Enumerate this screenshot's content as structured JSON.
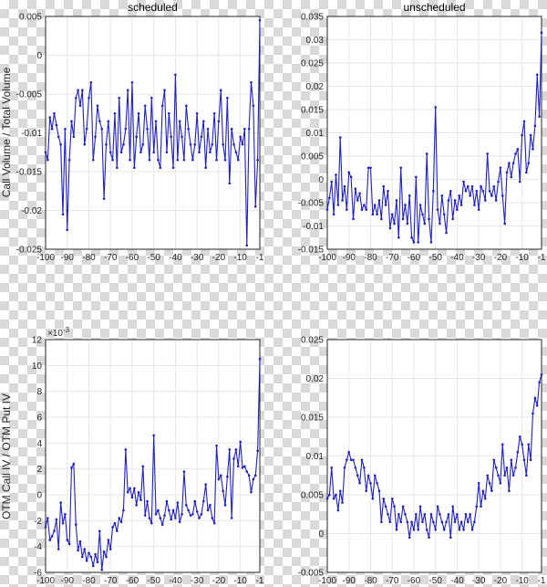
{
  "colors": {
    "series": "#1f1fc8",
    "axes": "#262626",
    "grid": "#e6e6e6"
  },
  "chart_data": [
    {
      "type": "line",
      "title": "scheduled",
      "ylabel": "",
      "xlim": [
        -100,
        -1
      ],
      "ylim": [
        -0.025,
        0.005
      ],
      "xticks": [
        -100,
        -90,
        -80,
        -70,
        -60,
        -50,
        -40,
        -30,
        -20,
        -10,
        -1
      ],
      "xtick_labels": [
        "-100",
        "-90",
        "-80",
        "-70",
        "-60",
        "-50",
        "-40",
        "-30",
        "-20",
        "-10",
        "-1"
      ],
      "yticks": [
        -0.025,
        -0.02,
        -0.015,
        -0.01,
        -0.005,
        0,
        0.005
      ],
      "ytick_labels": [
        "-0.025",
        "-0.02",
        "-0.015",
        "-0.01",
        "-0.005",
        "0",
        "0.005"
      ],
      "y_exponent": "",
      "grid": true,
      "x": [
        -100,
        -99,
        -98,
        -97,
        -96,
        -95,
        -94,
        -93,
        -92,
        -91,
        -90,
        -89,
        -88,
        -87,
        -86,
        -85,
        -84,
        -83,
        -82,
        -81,
        -80,
        -79,
        -78,
        -77,
        -76,
        -75,
        -74,
        -73,
        -72,
        -71,
        -70,
        -69,
        -68,
        -67,
        -66,
        -65,
        -64,
        -63,
        -62,
        -61,
        -60,
        -59,
        -58,
        -57,
        -56,
        -55,
        -54,
        -53,
        -52,
        -51,
        -50,
        -49,
        -48,
        -47,
        -46,
        -45,
        -44,
        -43,
        -42,
        -41,
        -40,
        -39,
        -38,
        -37,
        -36,
        -35,
        -34,
        -33,
        -32,
        -31,
        -30,
        -29,
        -28,
        -27,
        -26,
        -25,
        -24,
        -23,
        -22,
        -21,
        -20,
        -19,
        -18,
        -17,
        -16,
        -15,
        -14,
        -13,
        -12,
        -11,
        -10,
        -9,
        -8,
        -7,
        -6,
        -5,
        -4,
        -3,
        -2,
        -1
      ],
      "y": [
        -0.0125,
        -0.0135,
        -0.008,
        -0.0095,
        -0.0075,
        -0.009,
        -0.0105,
        -0.0115,
        -0.0205,
        -0.0095,
        -0.0225,
        -0.0135,
        -0.0085,
        -0.0105,
        -0.0055,
        -0.0045,
        -0.0065,
        -0.0045,
        -0.0115,
        -0.0095,
        -0.0055,
        -0.0035,
        -0.0135,
        -0.0105,
        -0.0065,
        -0.0085,
        -0.0095,
        -0.0185,
        -0.0115,
        -0.0085,
        -0.0125,
        -0.0135,
        -0.0075,
        -0.0145,
        -0.0055,
        -0.0125,
        -0.0115,
        -0.0095,
        -0.0045,
        -0.0135,
        -0.0035,
        -0.0145,
        -0.0105,
        -0.0075,
        -0.0125,
        -0.0115,
        -0.0065,
        -0.0095,
        -0.0135,
        -0.0055,
        -0.0125,
        -0.0085,
        -0.0135,
        -0.0145,
        -0.0065,
        -0.0045,
        -0.0125,
        -0.0075,
        -0.0105,
        -0.0145,
        -0.0025,
        -0.0135,
        -0.0085,
        -0.0105,
        -0.0135,
        -0.0065,
        -0.0095,
        -0.0115,
        -0.0135,
        -0.0115,
        -0.0075,
        -0.0125,
        -0.0105,
        -0.0085,
        -0.0145,
        -0.0095,
        -0.0125,
        -0.0115,
        -0.0075,
        -0.0135,
        -0.0085,
        -0.0045,
        -0.0115,
        -0.0135,
        -0.0055,
        -0.0165,
        -0.0095,
        -0.0115,
        -0.0125,
        -0.0135,
        -0.0105,
        -0.0115,
        -0.0095,
        -0.0245,
        -0.0095,
        -0.0035,
        -0.0065,
        -0.0195,
        -0.0135,
        0.0045
      ]
    },
    {
      "type": "line",
      "title": "unscheduled",
      "ylabel": "",
      "xlim": [
        -100,
        -1
      ],
      "ylim": [
        -0.015,
        0.035
      ],
      "xticks": [
        -100,
        -90,
        -80,
        -70,
        -60,
        -50,
        -40,
        -30,
        -20,
        -10,
        -1
      ],
      "xtick_labels": [
        "-100",
        "-90",
        "-80",
        "-70",
        "-60",
        "-50",
        "-40",
        "-30",
        "-20",
        "-10",
        "-1"
      ],
      "yticks": [
        -0.015,
        -0.01,
        -0.005,
        0,
        0.005,
        0.01,
        0.015,
        0.02,
        0.025,
        0.03,
        0.035
      ],
      "ytick_labels": [
        "-0.015",
        "-0.01",
        "-0.005",
        "0",
        "0.005",
        "0.01",
        "0.015",
        "0.02",
        "0.025",
        "0.03",
        "0.035"
      ],
      "y_exponent": "",
      "grid": true,
      "x": [
        -100,
        -99,
        -98,
        -97,
        -96,
        -95,
        -94,
        -93,
        -92,
        -91,
        -90,
        -89,
        -88,
        -87,
        -86,
        -85,
        -84,
        -83,
        -82,
        -81,
        -80,
        -79,
        -78,
        -77,
        -76,
        -75,
        -74,
        -73,
        -72,
        -71,
        -70,
        -69,
        -68,
        -67,
        -66,
        -65,
        -64,
        -63,
        -62,
        -61,
        -60,
        -59,
        -58,
        -57,
        -56,
        -55,
        -54,
        -53,
        -52,
        -51,
        -50,
        -49,
        -48,
        -47,
        -46,
        -45,
        -44,
        -43,
        -42,
        -41,
        -40,
        -39,
        -38,
        -37,
        -36,
        -35,
        -34,
        -33,
        -32,
        -31,
        -30,
        -29,
        -28,
        -27,
        -26,
        -25,
        -24,
        -23,
        -22,
        -21,
        -20,
        -19,
        -18,
        -17,
        -16,
        -15,
        -14,
        -13,
        -12,
        -11,
        -10,
        -9,
        -8,
        -7,
        -6,
        -5,
        -4,
        -3,
        -2,
        -1
      ],
      "y": [
        -0.0065,
        -0.004,
        -0.0005,
        -0.0075,
        0.001,
        -0.0055,
        0.009,
        -0.0045,
        -0.0015,
        -0.0065,
        0.0015,
        0.0005,
        -0.0085,
        -0.002,
        -0.0045,
        -0.003,
        -0.0065,
        -0.0055,
        -0.0065,
        0.0025,
        0.0025,
        -0.0075,
        -0.0055,
        -0.0075,
        -0.0045,
        -0.0085,
        -0.0015,
        -0.0055,
        -0.0025,
        -0.0105,
        -0.0075,
        -0.0095,
        -0.0045,
        -0.0125,
        0.0025,
        -0.0085,
        -0.0055,
        -0.0095,
        -0.0035,
        -0.0125,
        -0.0135,
        0.0005,
        -0.0135,
        -0.0055,
        -0.0075,
        -0.0095,
        0.0055,
        -0.0085,
        -0.0135,
        -0.0025,
        0.0155,
        -0.0065,
        -0.0095,
        -0.0035,
        -0.0075,
        -0.0115,
        -0.0045,
        -0.0025,
        -0.0085,
        -0.0045,
        -0.0065,
        -0.0035,
        -0.0055,
        -0.0005,
        -0.0025,
        -0.0015,
        -0.0035,
        -0.0015,
        -0.0055,
        -0.0025,
        -0.0065,
        -0.0015,
        -0.0025,
        -0.0045,
        0.0055,
        -0.0025,
        -0.0035,
        -0.0015,
        -0.0045,
        -0.0005,
        0.0025,
        -0.0035,
        -0.0095,
        0.0015,
        0.0035,
        0.0005,
        0.0035,
        0.0055,
        0.0065,
        -0.0005,
        0.0095,
        0.0125,
        0.0015,
        0.0035,
        0.0095,
        0.0065,
        0.0115,
        0.0225,
        0.0135,
        0.0315
      ]
    },
    {
      "type": "line",
      "title": "",
      "ylabel": "",
      "xlim": [
        -100,
        -1
      ],
      "ylim": [
        -6,
        12
      ],
      "xticks": [
        -100,
        -90,
        -80,
        -70,
        -60,
        -50,
        -40,
        -30,
        -20,
        -10,
        -1
      ],
      "xtick_labels": [
        "-100",
        "-90",
        "-80",
        "-70",
        "-60",
        "-50",
        "-40",
        "-30",
        "-20",
        "-10",
        "-1"
      ],
      "yticks": [
        -6,
        -4,
        -2,
        0,
        2,
        4,
        6,
        8,
        10,
        12
      ],
      "ytick_labels": [
        "-6",
        "-4",
        "-2",
        "0",
        "2",
        "4",
        "6",
        "8",
        "10",
        "12"
      ],
      "y_exponent": "10",
      "y_exponent_power": "-3",
      "grid": true,
      "x": [
        -100,
        -99,
        -98,
        -97,
        -96,
        -95,
        -94,
        -93,
        -92,
        -91,
        -90,
        -89,
        -88,
        -87,
        -86,
        -85,
        -84,
        -83,
        -82,
        -81,
        -80,
        -79,
        -78,
        -77,
        -76,
        -75,
        -74,
        -73,
        -72,
        -71,
        -70,
        -69,
        -68,
        -67,
        -66,
        -65,
        -64,
        -63,
        -62,
        -61,
        -60,
        -59,
        -58,
        -57,
        -56,
        -55,
        -54,
        -53,
        -52,
        -51,
        -50,
        -49,
        -48,
        -47,
        -46,
        -45,
        -44,
        -43,
        -42,
        -41,
        -40,
        -39,
        -38,
        -37,
        -36,
        -35,
        -34,
        -33,
        -32,
        -31,
        -30,
        -29,
        -28,
        -27,
        -26,
        -25,
        -24,
        -23,
        -22,
        -21,
        -20,
        -19,
        -18,
        -17,
        -16,
        -15,
        -14,
        -13,
        -12,
        -11,
        -10,
        -9,
        -8,
        -7,
        -6,
        -5,
        -4,
        -3,
        -2,
        -1
      ],
      "y": [
        -2.5,
        -1.8,
        -3.5,
        -3.2,
        -2.8,
        -1.9,
        -4.2,
        -0.6,
        -2.2,
        -1.5,
        -3.5,
        -3.8,
        2.1,
        2.4,
        -2.3,
        -4.3,
        -3.6,
        -4.8,
        -4.2,
        -5.1,
        -4.5,
        -4.8,
        -5.5,
        -4.6,
        -5.2,
        -2.8,
        -5.8,
        -4.4,
        -4.8,
        -3.5,
        -4.2,
        -2.5,
        -2.2,
        -2.8,
        -1.8,
        -2.1,
        -1.2,
        3.5,
        0.2,
        0.5,
        -0.2,
        0.5,
        -0.8,
        0.2,
        -0.4,
        2.2,
        -1.6,
        -0.5,
        -1.8,
        -2.2,
        4.6,
        -1.5,
        -1.2,
        -1.8,
        -2.3,
        -1.6,
        -0.5,
        -1.2,
        -1.9,
        -1.2,
        -1.8,
        -0.6,
        -2.1,
        -1.5,
        1.8,
        -0.8,
        -1.2,
        -1.6,
        -1.5,
        -0.5,
        -1.3,
        -1.8,
        -1.5,
        -0.5,
        0.8,
        -1.2,
        -0.8,
        -1.8,
        -2.2,
        3.8,
        1.2,
        1.5,
        0.3,
        -0.8,
        1.4,
        3.5,
        -1.8,
        2.8,
        3.5,
        2.2,
        4.1,
        2.1,
        2.2,
        1.8,
        1.5,
        0.2,
        1.2,
        1.5,
        3.4,
        10.5
      ]
    },
    {
      "type": "line",
      "title": "",
      "ylabel": "",
      "xlim": [
        -100,
        -1
      ],
      "ylim": [
        -0.005,
        0.025
      ],
      "xticks": [
        -100,
        -90,
        -80,
        -70,
        -60,
        -50,
        -40,
        -30,
        -20,
        -10,
        -1
      ],
      "xtick_labels": [
        "-100",
        "-90",
        "-80",
        "-70",
        "-60",
        "-50",
        "-40",
        "-30",
        "-20",
        "-10",
        "-1"
      ],
      "yticks": [
        -0.005,
        0,
        0.005,
        0.01,
        0.015,
        0.02,
        0.025
      ],
      "ytick_labels": [
        "-0.005",
        "0",
        "0.005",
        "0.01",
        "0.015",
        "0.02",
        "0.025"
      ],
      "y_exponent": "",
      "grid": true,
      "x": [
        -100,
        -99,
        -98,
        -97,
        -96,
        -95,
        -94,
        -93,
        -92,
        -91,
        -90,
        -89,
        -88,
        -87,
        -86,
        -85,
        -84,
        -83,
        -82,
        -81,
        -80,
        -79,
        -78,
        -77,
        -76,
        -75,
        -74,
        -73,
        -72,
        -71,
        -70,
        -69,
        -68,
        -67,
        -66,
        -65,
        -64,
        -63,
        -62,
        -61,
        -60,
        -59,
        -58,
        -57,
        -56,
        -55,
        -54,
        -53,
        -52,
        -51,
        -50,
        -49,
        -48,
        -47,
        -46,
        -45,
        -44,
        -43,
        -42,
        -41,
        -40,
        -39,
        -38,
        -37,
        -36,
        -35,
        -34,
        -33,
        -32,
        -31,
        -30,
        -29,
        -28,
        -27,
        -26,
        -25,
        -24,
        -23,
        -22,
        -21,
        -20,
        -19,
        -18,
        -17,
        -16,
        -15,
        -14,
        -13,
        -12,
        -11,
        -10,
        -9,
        -8,
        -7,
        -6,
        -5,
        -4,
        -3,
        -2,
        -1
      ],
      "y": [
        0.0045,
        0.005,
        0.0085,
        0.0045,
        0.005,
        0.003,
        0.0055,
        0.004,
        0.0085,
        0.0095,
        0.0105,
        0.0095,
        0.0095,
        0.0085,
        0.0075,
        0.0065,
        0.0095,
        0.0085,
        0.0055,
        0.0075,
        0.0065,
        0.0045,
        0.0075,
        0.0065,
        0.0055,
        0.0015,
        0.0045,
        0.0035,
        0.0025,
        0.0015,
        0.0045,
        0.0035,
        0.0005,
        0.0025,
        0.0015,
        0.0035,
        0.0025,
        0.0015,
        -0.0005,
        0.0015,
        0.0005,
        0.0025,
        0.0005,
        0.0035,
        0.0015,
        0.0025,
        0.0005,
        -0.0005,
        0.0025,
        0.0015,
        0.0005,
        0.0035,
        0.0025,
        0.0015,
        0.0005,
        0.0015,
        0.0025,
        -0.0005,
        0.0035,
        0.0015,
        0.0025,
        0.0005,
        0.0015,
        0.0005,
        0.0025,
        0.0015,
        0.0025,
        0.0005,
        0.0015,
        0.0035,
        0.0065,
        0.0035,
        0.0055,
        0.0045,
        0.0075,
        0.0065,
        0.0055,
        0.0095,
        0.0085,
        0.0075,
        0.0065,
        0.0115,
        0.0075,
        0.0085,
        0.0055,
        0.0095,
        0.0075,
        0.0085,
        0.0105,
        0.0125,
        0.0115,
        0.0095,
        0.0075,
        0.0115,
        0.0095,
        0.0155,
        0.0175,
        0.0165,
        0.0195,
        0.0205
      ]
    }
  ],
  "figure": {
    "ylabel_top": "Call Volume / Total Volume",
    "ylabel_bottom": "OTM Call IV / OTM Put IV"
  }
}
